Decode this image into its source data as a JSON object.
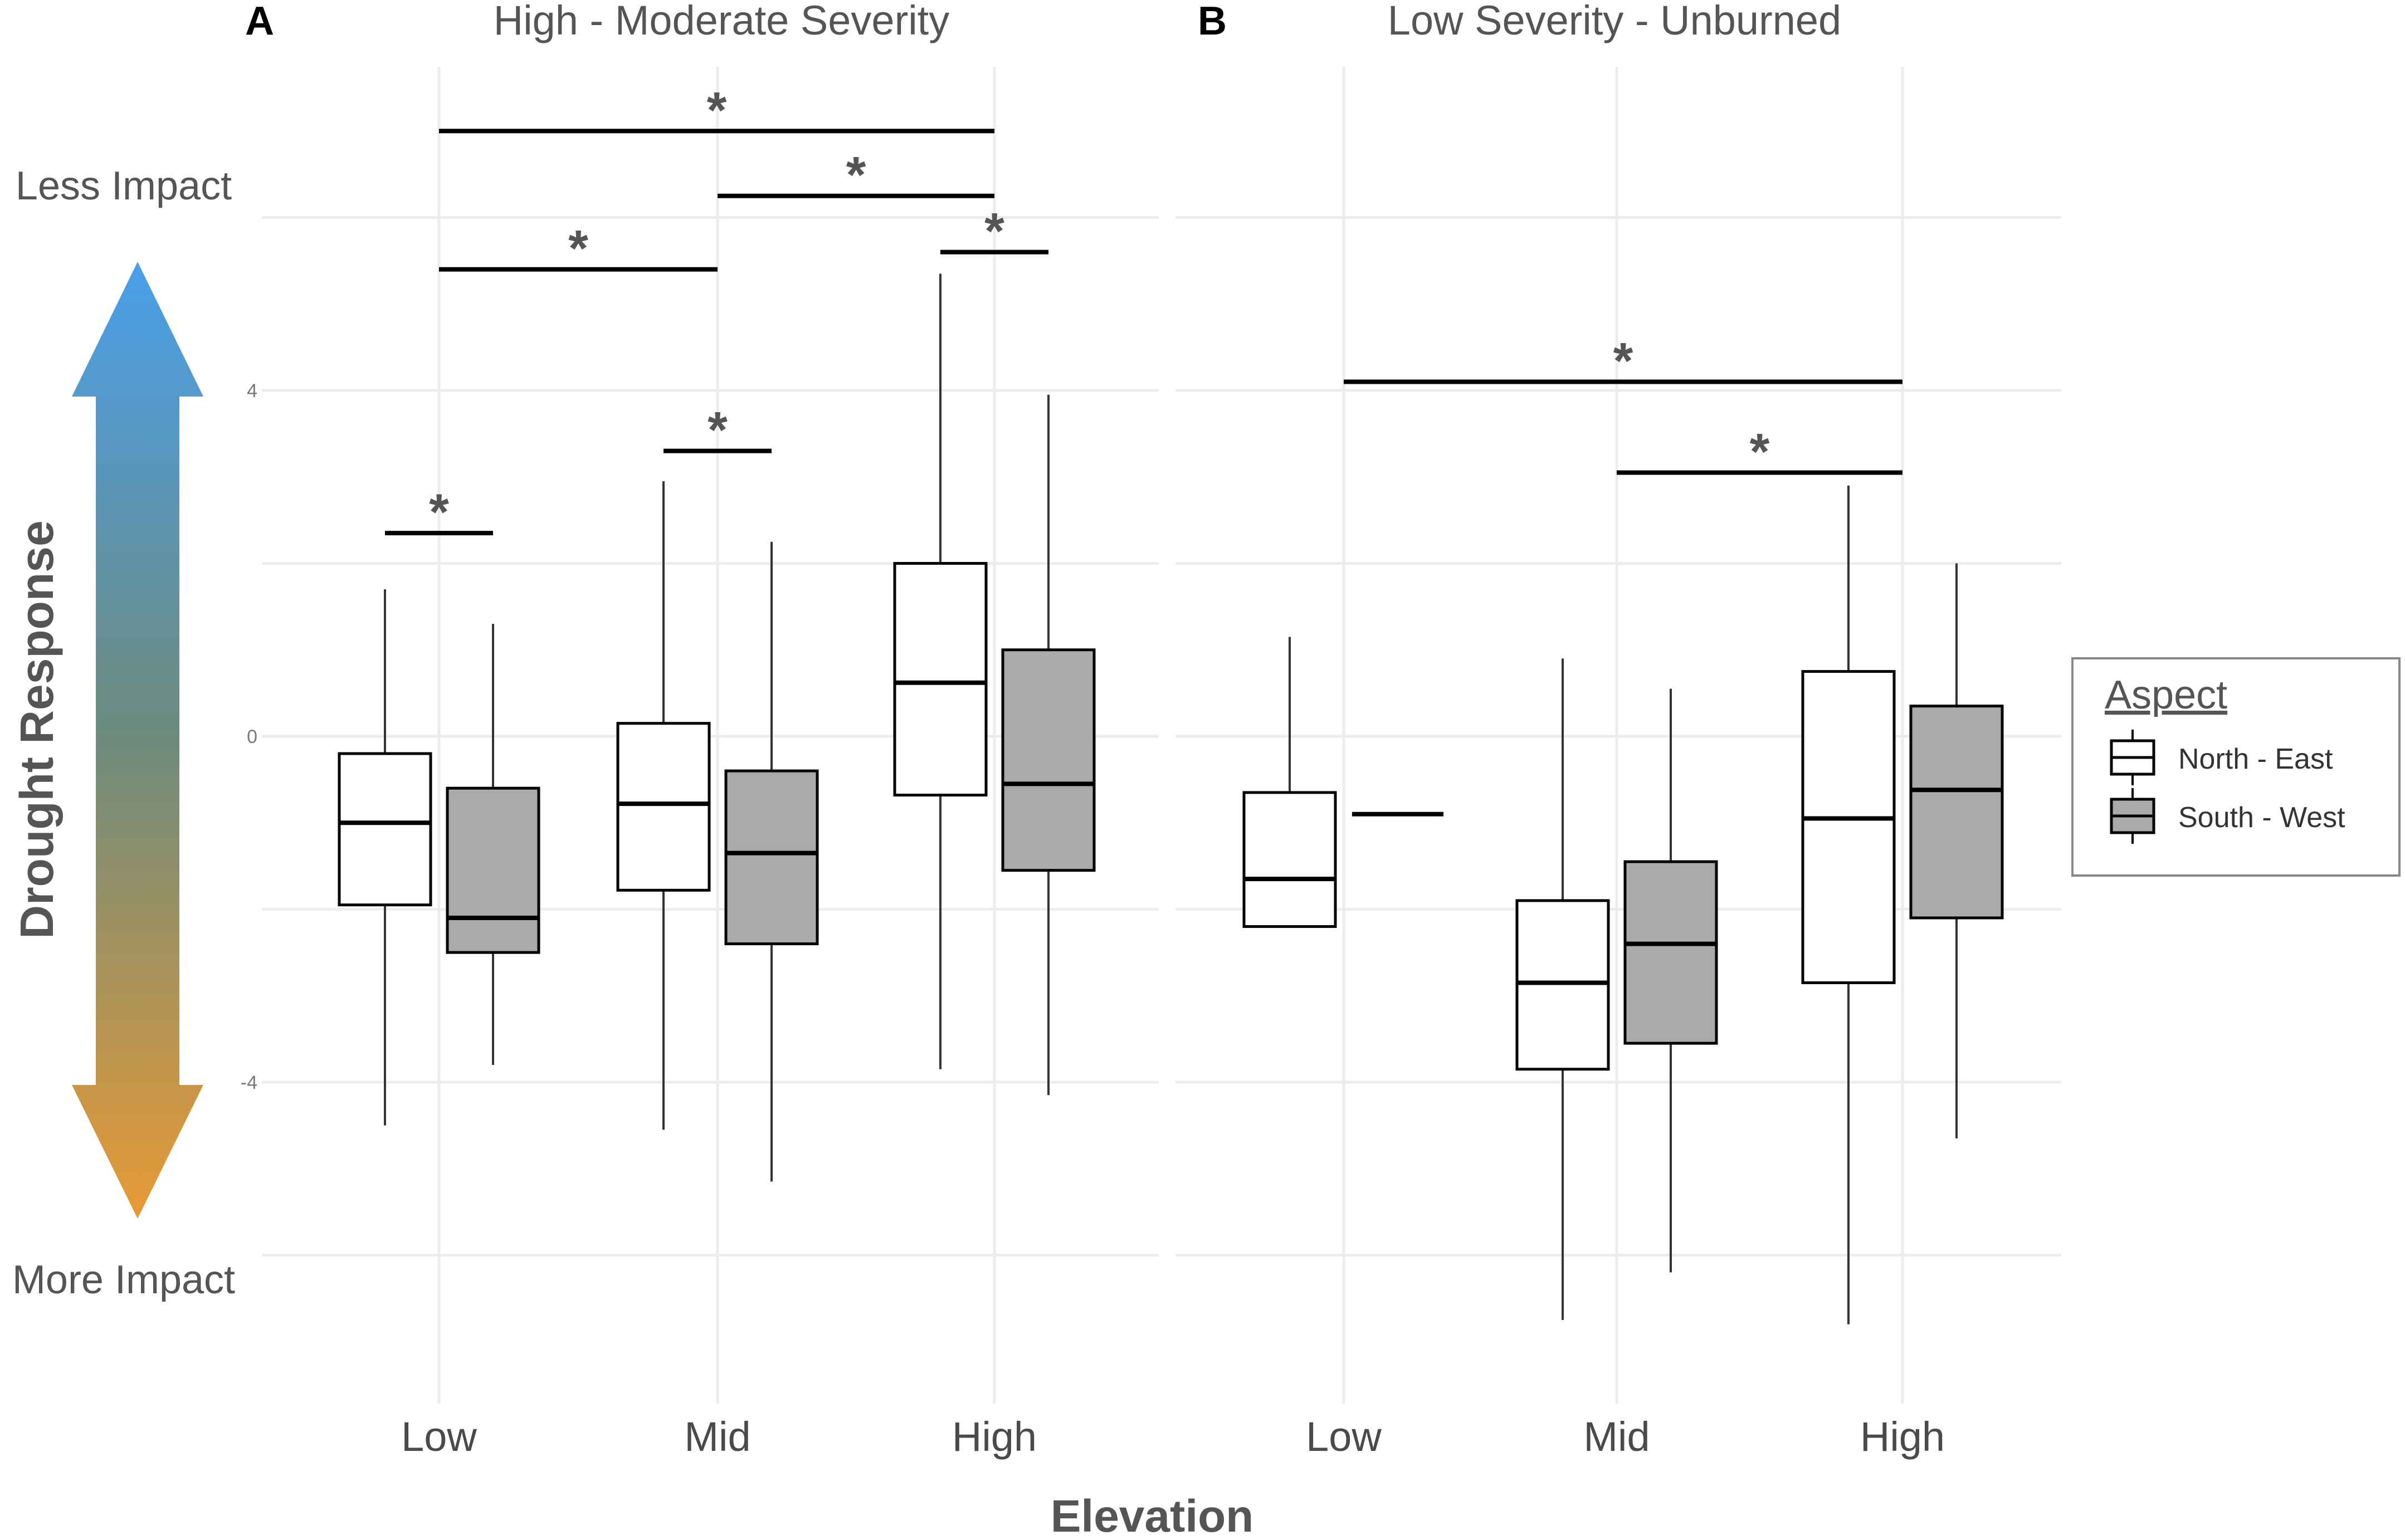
{
  "chart_data": [
    {
      "panel": "A",
      "type": "box",
      "title": "High - Moderate Severity",
      "xlabel": "Elevation",
      "ylabel": "Drought Response",
      "categories": [
        "Low",
        "Mid",
        "High"
      ],
      "ylim": [
        -7.5,
        8
      ],
      "yticks": [
        4,
        0,
        -4
      ],
      "series": [
        {
          "name": "North - East",
          "color": "#ffffff",
          "boxes": [
            {
              "category": "Low",
              "whisker_low": -4.5,
              "q1": -1.95,
              "median": -1.0,
              "q3": -0.2,
              "whisker_high": 1.7
            },
            {
              "category": "Mid",
              "whisker_low": -4.55,
              "q1": -1.78,
              "median": -0.78,
              "q3": 0.15,
              "whisker_high": 2.95
            },
            {
              "category": "High",
              "whisker_low": -3.85,
              "q1": -0.68,
              "median": 0.62,
              "q3": 2.0,
              "whisker_high": 5.35
            }
          ]
        },
        {
          "name": "South - West",
          "color": "#aaaaaa",
          "boxes": [
            {
              "category": "Low",
              "whisker_low": -3.8,
              "q1": -2.5,
              "median": -2.1,
              "q3": -0.6,
              "whisker_high": 1.3
            },
            {
              "category": "Mid",
              "whisker_low": -5.15,
              "q1": -2.4,
              "median": -1.35,
              "q3": -0.4,
              "whisker_high": 2.25
            },
            {
              "category": "High",
              "whisker_low": -4.15,
              "q1": -1.55,
              "median": -0.55,
              "q3": 1.0,
              "whisker_high": 3.95
            }
          ]
        }
      ],
      "significance": [
        {
          "label": "*",
          "from": "Low",
          "to": "High",
          "y": 7.0
        },
        {
          "label": "*",
          "from": "Mid",
          "to": "High",
          "y": 6.25
        },
        {
          "label": "*",
          "from": "Low",
          "to": "Mid",
          "y": 5.4
        },
        {
          "label": "*",
          "from": "High North - East",
          "to": "High South - West",
          "y": 5.6
        },
        {
          "label": "*",
          "from": "Mid North - East",
          "to": "Mid South - West",
          "y": 3.3
        },
        {
          "label": "*",
          "from": "Low North - East",
          "to": "Low South - West",
          "y": 2.35
        }
      ]
    },
    {
      "panel": "B",
      "type": "box",
      "title": "Low Severity - Unburned",
      "xlabel": "Elevation",
      "categories": [
        "Low",
        "Mid",
        "High"
      ],
      "ylim": [
        -7.5,
        8
      ],
      "series": [
        {
          "name": "North - East",
          "color": "#ffffff",
          "boxes": [
            {
              "category": "Low",
              "whisker_low": -2.2,
              "q1": -2.2,
              "median": -1.65,
              "q3": -0.65,
              "whisker_high": 1.15
            },
            {
              "category": "Mid",
              "whisker_low": -6.75,
              "q1": -3.85,
              "median": -2.85,
              "q3": -1.9,
              "whisker_high": 0.9
            },
            {
              "category": "High",
              "whisker_low": -6.8,
              "q1": -2.85,
              "median": -0.95,
              "q3": 0.75,
              "whisker_high": 2.9
            }
          ]
        },
        {
          "name": "South - West",
          "color": "#aaaaaa",
          "boxes": [
            {
              "category": "Low",
              "whisker_low": -0.9,
              "q1": -0.9,
              "median": -0.9,
              "q3": -0.9,
              "whisker_high": -0.9
            },
            {
              "category": "Mid",
              "whisker_low": -6.2,
              "q1": -3.55,
              "median": -2.4,
              "q3": -1.45,
              "whisker_high": 0.55
            },
            {
              "category": "High",
              "whisker_low": -4.65,
              "q1": -2.1,
              "median": -0.62,
              "q3": 0.35,
              "whisker_high": 2.0
            }
          ]
        }
      ],
      "significance": [
        {
          "label": "*",
          "from": "Low",
          "to": "High",
          "y": 4.1
        },
        {
          "label": "*",
          "from": "Mid",
          "to": "High",
          "y": 3.05
        }
      ]
    }
  ],
  "figure": {
    "panel_a_letter": "A",
    "panel_b_letter": "B",
    "panel_a_title": "High - Moderate Severity",
    "panel_b_title": "Low Severity - Unburned",
    "ylabel": "Drought Response",
    "xlabel": "Elevation",
    "less_impact_label": "Less Impact",
    "more_impact_label": "More Impact",
    "arrow_colors": {
      "top": "#4a9fea",
      "middle": "#6e8b7d",
      "bottom": "#e89a35"
    },
    "significance_marker": "*"
  },
  "legend": {
    "title": "Aspect",
    "items": [
      {
        "label": "North - East",
        "color": "#ffffff"
      },
      {
        "label": "South - West",
        "color": "#aaaaaa"
      }
    ]
  }
}
